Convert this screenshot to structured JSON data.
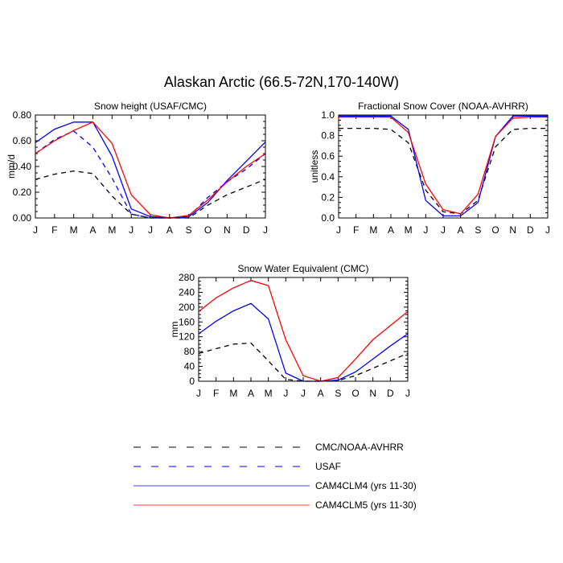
{
  "figure": {
    "title": "Alaskan Arctic (66.5-72N,170-140W)"
  },
  "months": [
    "J",
    "F",
    "M",
    "A",
    "M",
    "J",
    "J",
    "A",
    "S",
    "O",
    "N",
    "D",
    "J"
  ],
  "legend": [
    {
      "key": "cmc",
      "label": "CMC/NOAA-AVHRR",
      "color": "#000000",
      "dashed": true
    },
    {
      "key": "usaf",
      "label": "USAF",
      "color": "#0000ff",
      "dashed": true
    },
    {
      "key": "clm4",
      "label": "CAM4CLM4 (yrs 11-30)",
      "color": "#0000ff",
      "dashed": false
    },
    {
      "key": "clm5",
      "label": "CAM4CLM5 (yrs 11-30)",
      "color": "#ff0000",
      "dashed": false
    }
  ],
  "colors": {
    "black": "#000000",
    "blue": "#0000ff",
    "red": "#ff0000"
  },
  "chart_data": [
    {
      "type": "line",
      "title": "Snow height (USAF/CMC)",
      "xlabel": "",
      "ylabel": "mm/d",
      "ylim": [
        0,
        0.8
      ],
      "yticks": [
        "0.00",
        "0.20",
        "0.40",
        "0.60",
        "0.80"
      ],
      "ytick_values": [
        0,
        0.2,
        0.4,
        0.6,
        0.8
      ],
      "categories": [
        "J",
        "F",
        "M",
        "A",
        "M",
        "J",
        "J",
        "A",
        "S",
        "O",
        "N",
        "D",
        "J"
      ],
      "series": [
        {
          "style": "cmc",
          "values": [
            0.3,
            0.34,
            0.365,
            0.345,
            0.17,
            0.03,
            0.0,
            0.0,
            0.0,
            0.1,
            0.18,
            0.24,
            0.3
          ]
        },
        {
          "style": "usaf",
          "values": [
            0.5,
            0.61,
            0.675,
            0.55,
            0.31,
            0.03,
            0.0,
            0.0,
            0.01,
            0.16,
            0.28,
            0.38,
            0.5
          ]
        },
        {
          "style": "clm4",
          "values": [
            0.585,
            0.69,
            0.745,
            0.745,
            0.48,
            0.07,
            0.01,
            0.0,
            0.01,
            0.12,
            0.29,
            0.44,
            0.59
          ]
        },
        {
          "style": "clm5",
          "values": [
            0.5,
            0.6,
            0.68,
            0.745,
            0.58,
            0.18,
            0.025,
            0.0,
            0.02,
            0.14,
            0.28,
            0.4,
            0.5
          ]
        }
      ]
    },
    {
      "type": "line",
      "title": "Fractional Snow Cover (NOAA-AVHRR)",
      "xlabel": "",
      "ylabel": "unitless",
      "ylim": [
        0,
        1.0
      ],
      "yticks": [
        "0.0",
        "0.2",
        "0.4",
        "0.6",
        "0.8",
        "1.0"
      ],
      "ytick_values": [
        0,
        0.2,
        0.4,
        0.6,
        0.8,
        1.0
      ],
      "categories": [
        "J",
        "F",
        "M",
        "A",
        "M",
        "J",
        "J",
        "A",
        "S",
        "O",
        "N",
        "D",
        "J"
      ],
      "series": [
        {
          "style": "cmc",
          "values": [
            0.87,
            0.87,
            0.87,
            0.86,
            0.73,
            0.27,
            0.06,
            0.04,
            0.17,
            0.69,
            0.86,
            0.87,
            0.87
          ]
        },
        {
          "style": "clm4",
          "values": [
            0.99,
            0.99,
            0.99,
            0.99,
            0.86,
            0.17,
            0.02,
            0.02,
            0.15,
            0.79,
            0.99,
            0.99,
            0.99
          ]
        },
        {
          "style": "clm5",
          "values": [
            0.98,
            0.98,
            0.98,
            0.98,
            0.83,
            0.33,
            0.08,
            0.04,
            0.23,
            0.79,
            0.97,
            0.98,
            0.98
          ]
        }
      ]
    },
    {
      "type": "line",
      "title": "Snow Water Equivalent (CMC)",
      "xlabel": "",
      "ylabel": "mm",
      "ylim": [
        0,
        280
      ],
      "yticks": [
        "0",
        "40",
        "80",
        "120",
        "160",
        "200",
        "240",
        "280"
      ],
      "ytick_values": [
        0,
        40,
        80,
        120,
        160,
        200,
        240,
        280
      ],
      "categories": [
        "J",
        "F",
        "M",
        "A",
        "M",
        "J",
        "J",
        "A",
        "S",
        "O",
        "N",
        "D",
        "J"
      ],
      "series": [
        {
          "style": "cmc",
          "values": [
            75,
            88,
            100,
            103,
            55,
            5,
            0,
            0,
            2,
            15,
            35,
            55,
            75
          ]
        },
        {
          "style": "clm4",
          "values": [
            128,
            162,
            190,
            210,
            168,
            22,
            0,
            0,
            3,
            25,
            60,
            95,
            128
          ]
        },
        {
          "style": "clm5",
          "values": [
            188,
            225,
            252,
            272,
            258,
            112,
            15,
            0,
            10,
            60,
            112,
            150,
            188
          ]
        }
      ]
    }
  ]
}
